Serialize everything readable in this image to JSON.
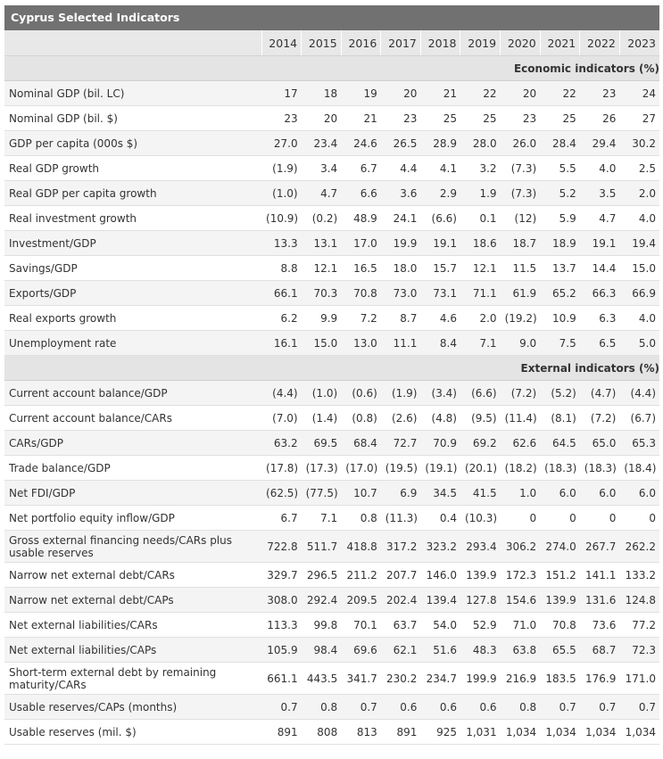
{
  "title": "Cyprus Selected Indicators",
  "years": [
    "2014",
    "2015",
    "2016",
    "2017",
    "2018",
    "2019",
    "2020",
    "2021",
    "2022",
    "2023"
  ],
  "sections": [
    {
      "title": "Economic indicators (%)",
      "rows": [
        {
          "label": "Nominal GDP (bil. LC)",
          "values": [
            "17",
            "18",
            "19",
            "20",
            "21",
            "22",
            "20",
            "22",
            "23",
            "24"
          ]
        },
        {
          "label": "Nominal GDP (bil. $)",
          "values": [
            "23",
            "20",
            "21",
            "23",
            "25",
            "25",
            "23",
            "25",
            "26",
            "27"
          ]
        },
        {
          "label": "GDP per capita (000s $)",
          "values": [
            "27.0",
            "23.4",
            "24.6",
            "26.5",
            "28.9",
            "28.0",
            "26.0",
            "28.4",
            "29.4",
            "30.2"
          ]
        },
        {
          "label": "Real GDP growth",
          "values": [
            "(1.9)",
            "3.4",
            "6.7",
            "4.4",
            "4.1",
            "3.2",
            "(7.3)",
            "5.5",
            "4.0",
            "2.5"
          ]
        },
        {
          "label": "Real GDP per capita growth",
          "values": [
            "(1.0)",
            "4.7",
            "6.6",
            "3.6",
            "2.9",
            "1.9",
            "(7.3)",
            "5.2",
            "3.5",
            "2.0"
          ]
        },
        {
          "label": "Real investment growth",
          "values": [
            "(10.9)",
            "(0.2)",
            "48.9",
            "24.1",
            "(6.6)",
            "0.1",
            "(12)",
            "5.9",
            "4.7",
            "4.0"
          ]
        },
        {
          "label": "Investment/GDP",
          "values": [
            "13.3",
            "13.1",
            "17.0",
            "19.9",
            "19.1",
            "18.6",
            "18.7",
            "18.9",
            "19.1",
            "19.4"
          ]
        },
        {
          "label": "Savings/GDP",
          "values": [
            "8.8",
            "12.1",
            "16.5",
            "18.0",
            "15.7",
            "12.1",
            "11.5",
            "13.7",
            "14.4",
            "15.0"
          ]
        },
        {
          "label": "Exports/GDP",
          "values": [
            "66.1",
            "70.3",
            "70.8",
            "73.0",
            "73.1",
            "71.1",
            "61.9",
            "65.2",
            "66.3",
            "66.9"
          ]
        },
        {
          "label": "Real exports growth",
          "values": [
            "6.2",
            "9.9",
            "7.2",
            "8.7",
            "4.6",
            "2.0",
            "(19.2)",
            "10.9",
            "6.3",
            "4.0"
          ]
        },
        {
          "label": "Unemployment rate",
          "values": [
            "16.1",
            "15.0",
            "13.0",
            "11.1",
            "8.4",
            "7.1",
            "9.0",
            "7.5",
            "6.5",
            "5.0"
          ]
        }
      ]
    },
    {
      "title": "External indicators (%)",
      "rows": [
        {
          "label": "Current account balance/GDP",
          "values": [
            "(4.4)",
            "(1.0)",
            "(0.6)",
            "(1.9)",
            "(3.4)",
            "(6.6)",
            "(7.2)",
            "(5.2)",
            "(4.7)",
            "(4.4)"
          ]
        },
        {
          "label": "Current account balance/CARs",
          "values": [
            "(7.0)",
            "(1.4)",
            "(0.8)",
            "(2.6)",
            "(4.8)",
            "(9.5)",
            "(11.4)",
            "(8.1)",
            "(7.2)",
            "(6.7)"
          ]
        },
        {
          "label": "CARs/GDP",
          "values": [
            "63.2",
            "69.5",
            "68.4",
            "72.7",
            "70.9",
            "69.2",
            "62.6",
            "64.5",
            "65.0",
            "65.3"
          ]
        },
        {
          "label": "Trade balance/GDP",
          "values": [
            "(17.8)",
            "(17.3)",
            "(17.0)",
            "(19.5)",
            "(19.1)",
            "(20.1)",
            "(18.2)",
            "(18.3)",
            "(18.3)",
            "(18.4)"
          ]
        },
        {
          "label": "Net FDI/GDP",
          "values": [
            "(62.5)",
            "(77.5)",
            "10.7",
            "6.9",
            "34.5",
            "41.5",
            "1.0",
            "6.0",
            "6.0",
            "6.0"
          ]
        },
        {
          "label": "Net portfolio equity inflow/GDP",
          "values": [
            "6.7",
            "7.1",
            "0.8",
            "(11.3)",
            "0.4",
            "(10.3)",
            "0",
            "0",
            "0",
            "0"
          ]
        },
        {
          "label": "Gross external financing needs/CARs plus usable reserves",
          "values": [
            "722.8",
            "511.7",
            "418.8",
            "317.2",
            "323.2",
            "293.4",
            "306.2",
            "274.0",
            "267.7",
            "262.2"
          ]
        },
        {
          "label": "Narrow net external debt/CARs",
          "values": [
            "329.7",
            "296.5",
            "211.2",
            "207.7",
            "146.0",
            "139.9",
            "172.3",
            "151.2",
            "141.1",
            "133.2"
          ]
        },
        {
          "label": "Narrow net external debt/CAPs",
          "values": [
            "308.0",
            "292.4",
            "209.5",
            "202.4",
            "139.4",
            "127.8",
            "154.6",
            "139.9",
            "131.6",
            "124.8"
          ]
        },
        {
          "label": "Net external liabilities/CARs",
          "values": [
            "113.3",
            "99.8",
            "70.1",
            "63.7",
            "54.0",
            "52.9",
            "71.0",
            "70.8",
            "73.6",
            "77.2"
          ]
        },
        {
          "label": "Net external liabilities/CAPs",
          "values": [
            "105.9",
            "98.4",
            "69.6",
            "62.1",
            "51.6",
            "48.3",
            "63.8",
            "65.5",
            "68.7",
            "72.3"
          ]
        },
        {
          "label": "Short-term external debt by remaining maturity/CARs",
          "values": [
            "661.1",
            "443.5",
            "341.7",
            "230.2",
            "234.7",
            "199.9",
            "216.9",
            "183.5",
            "176.9",
            "171.0"
          ]
        },
        {
          "label": "Usable reserves/CAPs (months)",
          "values": [
            "0.7",
            "0.8",
            "0.7",
            "0.6",
            "0.6",
            "0.6",
            "0.8",
            "0.7",
            "0.7",
            "0.7"
          ]
        },
        {
          "label": "Usable reserves (mil. $)",
          "values": [
            "891",
            "808",
            "813",
            "891",
            "925",
            "1,031",
            "1,034",
            "1,034",
            "1,034",
            "1,034"
          ]
        }
      ]
    }
  ]
}
